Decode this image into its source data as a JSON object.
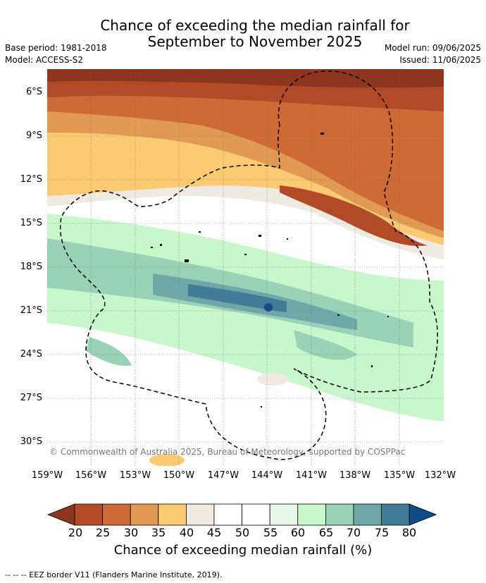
{
  "title_line1": "Chance of exceeding the median rainfall for",
  "title_line2": "September to November 2025",
  "base_period": "Base period: 1981-2018",
  "model": "Model: ACCESS-S2",
  "model_run": "Model run: 09/06/2025",
  "issued": "Issued: 11/06/2025",
  "copyright": "© Commonwealth of Australia 2025, Bureau of Meteorology, supported by COSPPac",
  "lat_labels": [
    "6°S",
    "9°S",
    "12°S",
    "15°S",
    "18°S",
    "21°S",
    "24°S",
    "27°S",
    "30°S"
  ],
  "lon_labels": [
    "159°W",
    "156°W",
    "153°W",
    "150°W",
    "147°W",
    "144°W",
    "141°W",
    "138°W",
    "135°W",
    "132°W"
  ],
  "colorbar": {
    "title": "Chance of exceeding median rainfall (%)",
    "ticks": [
      "20",
      "25",
      "30",
      "35",
      "40",
      "45",
      "50",
      "55",
      "60",
      "65",
      "70",
      "75",
      "80"
    ],
    "colors": [
      "#8e3520",
      "#b24a28",
      "#cd6a38",
      "#e09a52",
      "#fdca74",
      "#efebe2",
      "#ffffff",
      "#ffffff",
      "#e9f5e8",
      "#c8f7cc",
      "#9ad2b8",
      "#6ea8a8",
      "#417c96",
      "#114c86"
    ]
  },
  "footer": "--  --  -- EEZ border V11 (Flanders Marine Institute, 2019)."
}
